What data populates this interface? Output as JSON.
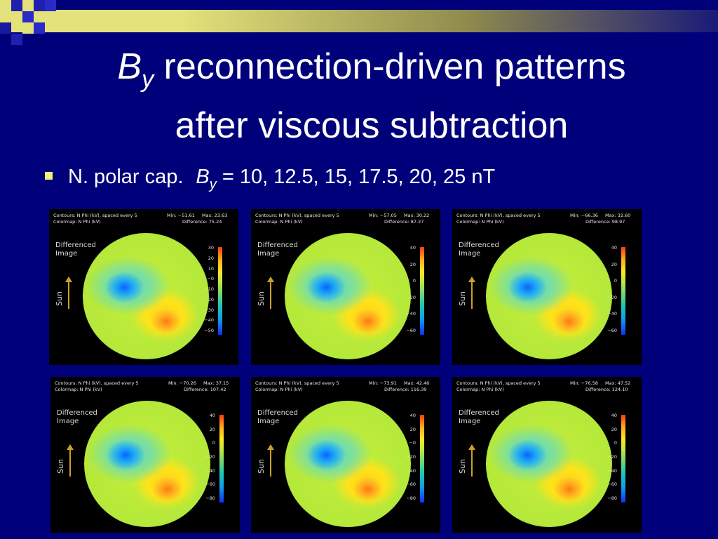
{
  "title": {
    "b": "B",
    "b_sub": "y",
    "line1_rest": " reconnection-driven patterns",
    "line2": "after viscous subtraction"
  },
  "bullet": {
    "text": "N. polar cap.",
    "b": "B",
    "b_sub": "y",
    "rest": " = 10, 12.5, 15, 17.5, 20, 25 nT"
  },
  "panel_common": {
    "contours": "Contours:  N Phi (kV), spaced every 5",
    "colormap": "Colormap:  N Phi (kV)",
    "image_label_1": "Differenced",
    "image_label_2": "Image",
    "sun_label": "Sun"
  },
  "panels": [
    {
      "min": "Min: −51.61",
      "max": "Max: 23.63",
      "difference": "Difference: 75.24",
      "ticks": [
        "30",
        "20",
        "10",
        "−0",
        "−10",
        "−20",
        "−30",
        "−40",
        "−50"
      ]
    },
    {
      "min": "Min: −57.05",
      "max": "Max: 30.22",
      "difference": "Difference: 87.27",
      "ticks": [
        "40",
        "20",
        "0",
        "−20",
        "−40",
        "−60"
      ]
    },
    {
      "min": "Min: −66.36",
      "max": "Max: 32.60",
      "difference": "Difference: 98.97",
      "ticks": [
        "40",
        "20",
        "0",
        "−20",
        "−40",
        "−60"
      ]
    },
    {
      "min": "Min: −70.26",
      "max": "Max: 37.15",
      "difference": "Difference: 107.42",
      "ticks": [
        "40",
        "20",
        "0",
        "−20",
        "−40",
        "−60",
        "−80"
      ]
    },
    {
      "min": "Min: −73.91",
      "max": "Max: 42.46",
      "difference": "Difference: 116.39",
      "ticks": [
        "40",
        "20",
        "−0",
        "−20",
        "−40",
        "−60",
        "−80"
      ]
    },
    {
      "min": "Min: −76.58",
      "max": "Max: 47.52",
      "difference": "Difference: 124.10",
      "ticks": [
        "40",
        "20",
        "0",
        "−20",
        "−40",
        "−60",
        "−80"
      ]
    }
  ],
  "colors": {
    "background": "#00007a",
    "band": "#e4e27a",
    "bullet": "#f2f27a"
  }
}
